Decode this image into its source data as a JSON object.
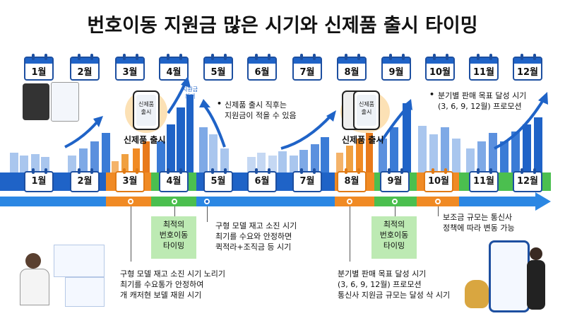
{
  "title": "번호이동 지원금 많은 시기와 신제품 출시 타이밍",
  "months_top": [
    "1월",
    "2월",
    "3월",
    "4월",
    "5월",
    "6월",
    "7월",
    "8월",
    "9월",
    "10월",
    "11월",
    "12월"
  ],
  "months_band": [
    "1월",
    "2월",
    "3월",
    "4월",
    "5월",
    "6월",
    "7월",
    "8월",
    "9월",
    "10월",
    "11월",
    "12월"
  ],
  "phones": {
    "left": {
      "screen": "신제품\n출시",
      "caption": "신제품 출시"
    },
    "right": {
      "screen": "신제품\n출시",
      "caption": "신제품 출시"
    }
  },
  "peak_label": "지원금\n최대",
  "notes": {
    "may_top": "신제품 출시 직후는\n지원금이 적을 수 있음",
    "oct_top": "분기별 판매 목표 달성 시기\n(3, 6, 9, 12월) 프로모션",
    "mar_bottom": "구형 모델 재고 소진 시기 노리기\n최기를 수요통가 안정하여\n개 캐저현 보델 재원 시기",
    "may_bottom": "구형 모델 재고 소진 시기\n최기를 수요와 안정하면\n퀵적라+조직금 등 시기",
    "aug_bottom": "분기별 판매 목표 달성 시기\n(3, 6, 9, 12월) 프로모션\n통신사 지원금 규모는 달성 삭 시기",
    "oct_bottom": "보조금 규모는 통신사\n정책에 따라 변동 가능"
  },
  "optimal_boxes": [
    {
      "text": "최적의\n번호이동\n타이밍"
    },
    {
      "text": "최적의\n번호이동\n타이밍"
    }
  ],
  "colors": {
    "blue": "#1f63c7",
    "light_blue": "#2b87e3",
    "orange": "#f08a24",
    "green": "#4bbf4f",
    "light_green": "#bdeab3"
  }
}
